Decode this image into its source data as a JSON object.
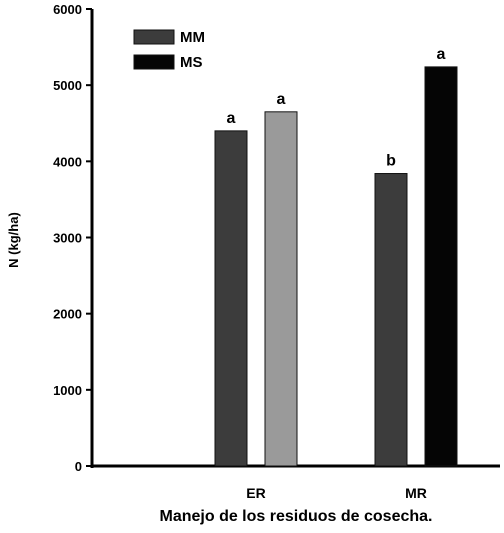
{
  "chart_data": {
    "type": "bar",
    "title": "",
    "xlabel": "Manejo de los residuos de cosecha.",
    "ylabel": "N (kg/ha)",
    "ylim": [
      0,
      6000
    ],
    "yticks": [
      0,
      1000,
      2000,
      3000,
      4000,
      5000,
      6000
    ],
    "categories": [
      "ER",
      "MR"
    ],
    "grid": false,
    "legend_position": "top-left",
    "series": [
      {
        "name": "MM",
        "color_by_category": [
          "#3c3c3c",
          "#3c3c3c"
        ],
        "values": [
          4400,
          3840
        ],
        "labels": [
          "a",
          "b"
        ]
      },
      {
        "name": "MS",
        "color_by_category": [
          "#9a9a9a",
          "#050505"
        ],
        "values": [
          4650,
          5240
        ],
        "labels": [
          "a",
          "a"
        ]
      }
    ],
    "legend": [
      {
        "label": "MM",
        "color": "#3c3c3c"
      },
      {
        "label": "MS",
        "color": "#050505"
      }
    ]
  }
}
